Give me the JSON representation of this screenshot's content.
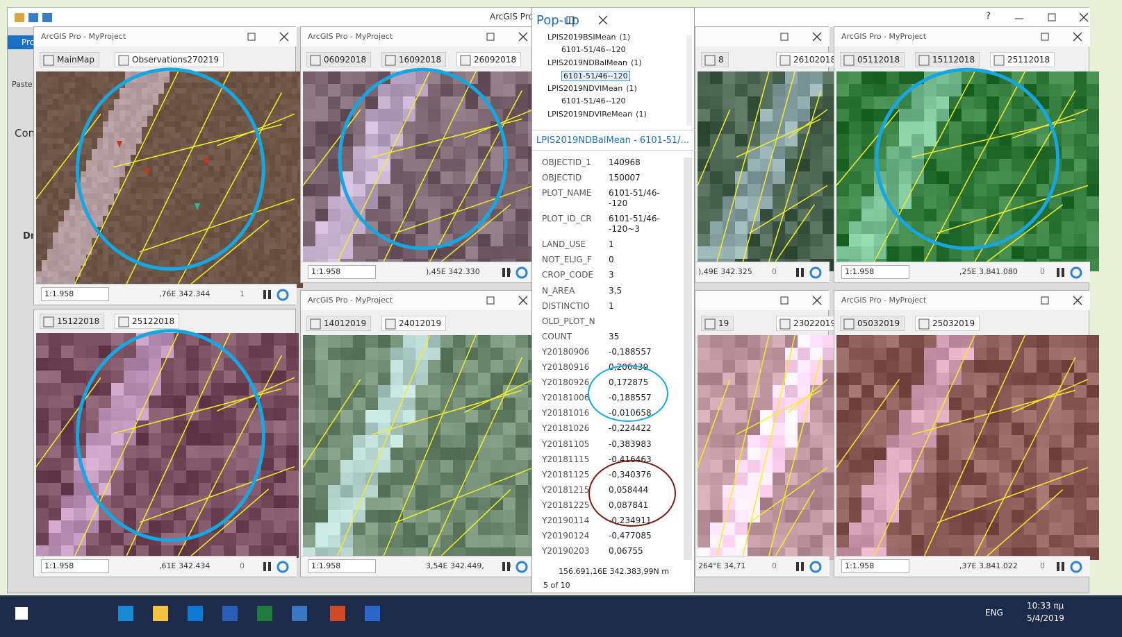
{
  "app": {
    "title": "ArcGIS Pro",
    "help": "?"
  },
  "ribbon": {
    "tab": "Pro",
    "paste": "Paste",
    "contents": "Con",
    "drawing": "Dr"
  },
  "windows": [
    {
      "title": "ArcGIS Pro - MyProject",
      "tabs": [
        "MainMap",
        "Observations270219"
      ],
      "scale": "1:1.958",
      "coords": ",76E 342.344",
      "selection": "1"
    },
    {
      "title": "ArcGIS Pro - MyProject",
      "tabs": [
        "06092018",
        "16092018",
        "26092018"
      ],
      "scale": "1:1.958",
      "coords": "),45E 342.330",
      "selection": "0"
    },
    {
      "tabs": [
        "8",
        "26102018"
      ],
      "coords": "),49E 342.325",
      "selection": "0"
    },
    {
      "title": "ArcGIS Pro - MyProject",
      "tabs": [
        "05112018",
        "15112018",
        "25112018"
      ],
      "scale": "1:1.958",
      "coords": ",25E 3.841.080",
      "selection": "0"
    },
    {
      "tabs": [
        "15122018",
        "25122018"
      ],
      "scale": "1:1.958",
      "coords": ",61E 342.434",
      "selection": "0"
    },
    {
      "title": "ArcGIS Pro - MyProject",
      "tabs": [
        "14012019",
        "24012019"
      ],
      "scale": "1:1.958",
      "coords": "3,54E 342.449,",
      "selection": "0"
    },
    {
      "tabs": [
        "19",
        "23022019"
      ],
      "coords": "264°E 34,71",
      "selection": "0"
    },
    {
      "title": "ArcGIS Pro - MyProject",
      "tabs": [
        "05032019",
        "25032019"
      ],
      "scale": "1:1.958",
      "coords": ",37E 3.841.022",
      "selection": "0"
    }
  ],
  "popup": {
    "title": "Pop-up",
    "tree": [
      {
        "layer": "LPIS2019BSIMean",
        "count": "(1)",
        "feature": "6101-51/46--120"
      },
      {
        "layer": "LPIS2019NDBalMean",
        "count": "(1)",
        "feature": "6101-51/46--120"
      },
      {
        "layer": "LPIS2019NDVIMean",
        "count": "(1)",
        "feature": "6101-51/46--120"
      },
      {
        "layer": "LPIS2019NDVIReMean",
        "count": "(1)"
      }
    ],
    "header": "LPIS2019NDBalMean - 6101-51/...",
    "fields": [
      {
        "name": "OBJECTID_1",
        "value": "140968"
      },
      {
        "name": "OBJECTID",
        "value": "150007"
      },
      {
        "name": "PLOT_NAME",
        "value": "6101-51/46--120"
      },
      {
        "name": "PLOT_ID_CR",
        "value": "6101-51/46--120~3"
      },
      {
        "name": "LAND_USE",
        "value": "1"
      },
      {
        "name": "NOT_ELIG_F",
        "value": "0"
      },
      {
        "name": "CROP_CODE",
        "value": "3"
      },
      {
        "name": "N_AREA",
        "value": "3,5"
      },
      {
        "name": "DISTINCTIO",
        "value": "1"
      },
      {
        "name": "OLD_PLOT_N"
      },
      {
        "name": "COUNT",
        "value": "35"
      },
      {
        "name": "Y20180906",
        "value": "-0,188557"
      },
      {
        "name": "Y20180916",
        "value": "0,206439"
      },
      {
        "name": "Y20180926",
        "value": "0,172875"
      },
      {
        "name": "Y20181006",
        "value": "-0,188557"
      },
      {
        "name": "Y20181016",
        "value": "-0,010658"
      },
      {
        "name": "Y20181026",
        "value": "-0,224422"
      },
      {
        "name": "Y20181105",
        "value": "-0,383983"
      },
      {
        "name": "Y20181115",
        "value": "-0,416463"
      },
      {
        "name": "Y20181125",
        "value": "-0,340376"
      },
      {
        "name": "Y20181215",
        "value": "0,058444"
      },
      {
        "name": "Y20181225",
        "value": "0,087841"
      },
      {
        "name": "Y20190114",
        "value": "-0,234911"
      },
      {
        "name": "Y20190124",
        "value": "-0,477085"
      },
      {
        "name": "Y20190203",
        "value": "0,06755"
      }
    ],
    "location": "156.691,16E 342.383,99N m",
    "pager": "5 of 10"
  },
  "taskbar": {
    "lang": "ENG",
    "time": "10:33 πμ",
    "date": "5/4/2019"
  }
}
